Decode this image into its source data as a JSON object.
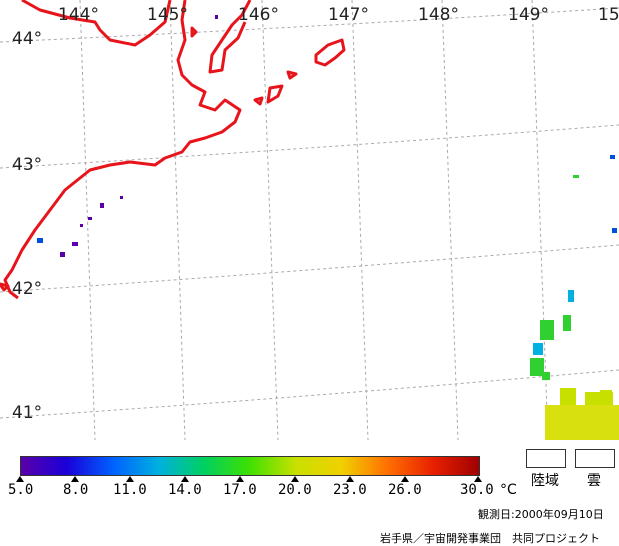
{
  "map": {
    "latitudes": [
      "44°",
      "43°",
      "42°",
      "41°"
    ],
    "longitudes": [
      "144°",
      "145°",
      "146°",
      "147°",
      "148°",
      "149°",
      "15"
    ],
    "coastline_color": "#e8141b"
  },
  "legend": {
    "tick_labels": [
      "5.0",
      "8.0",
      "11.0",
      "14.0",
      "17.0",
      "20.0",
      "23.0",
      "26.0",
      "30.0"
    ],
    "unit": "°C",
    "gradient_colors": [
      "#5a00a8",
      "#1a00d8",
      "#0060ff",
      "#00b0e0",
      "#00d060",
      "#40e000",
      "#c8e000",
      "#f0d000",
      "#ff7000",
      "#e82000",
      "#a00000"
    ],
    "land_label": "陸域",
    "cloud_label": "雲"
  },
  "footer": {
    "observation_date": "観測日:2000年09月10日",
    "credit": "岩手県／宇宙開発事業団　共同プロジェクト"
  }
}
